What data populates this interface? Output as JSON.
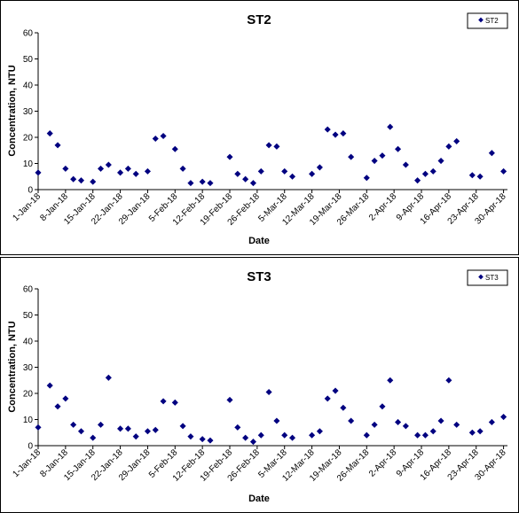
{
  "chart_data": [
    {
      "type": "scatter",
      "title": "ST2",
      "xlabel": "Date",
      "ylabel": "Concentration, NTU",
      "ylim": [
        0,
        60
      ],
      "yticks": [
        0,
        10,
        20,
        30,
        40,
        50,
        60
      ],
      "xlim": [
        "2018-01-01",
        "2018-05-01"
      ],
      "xtick_labels": [
        "1-Jan-18",
        "8-Jan-18",
        "15-Jan-18",
        "22-Jan-18",
        "29-Jan-18",
        "5-Feb-18",
        "12-Feb-18",
        "19-Feb-18",
        "26-Feb-18",
        "5-Mar-18",
        "12-Mar-18",
        "19-Mar-18",
        "26-Mar-18",
        "2-Apr-18",
        "9-Apr-18",
        "16-Apr-18",
        "23-Apr-18",
        "30-Apr-18"
      ],
      "legend": "top-right",
      "grid": false,
      "marker_color": "#000080",
      "series": [
        {
          "name": "ST2",
          "x": [
            "2018-01-01",
            "2018-01-04",
            "2018-01-06",
            "2018-01-08",
            "2018-01-10",
            "2018-01-12",
            "2018-01-15",
            "2018-01-17",
            "2018-01-19",
            "2018-01-22",
            "2018-01-24",
            "2018-01-26",
            "2018-01-29",
            "2018-01-31",
            "2018-02-02",
            "2018-02-05",
            "2018-02-07",
            "2018-02-09",
            "2018-02-12",
            "2018-02-14",
            "2018-02-19",
            "2018-02-21",
            "2018-02-23",
            "2018-02-25",
            "2018-02-27",
            "2018-03-01",
            "2018-03-03",
            "2018-03-05",
            "2018-03-07",
            "2018-03-12",
            "2018-03-14",
            "2018-03-16",
            "2018-03-18",
            "2018-03-20",
            "2018-03-22",
            "2018-03-26",
            "2018-03-28",
            "2018-03-30",
            "2018-04-01",
            "2018-04-03",
            "2018-04-05",
            "2018-04-08",
            "2018-04-10",
            "2018-04-12",
            "2018-04-14",
            "2018-04-16",
            "2018-04-18",
            "2018-04-22",
            "2018-04-24",
            "2018-04-27",
            "2018-04-30"
          ],
          "y": [
            6.5,
            21.5,
            17,
            8,
            4,
            3.5,
            3,
            8,
            9.5,
            6.5,
            8,
            6,
            7,
            19.5,
            20.5,
            15.5,
            8,
            2.5,
            3,
            2.5,
            12.5,
            6,
            4,
            2.5,
            7,
            17,
            16.5,
            7,
            5,
            6,
            8.5,
            23,
            21,
            21.5,
            12.5,
            4.5,
            11,
            13,
            24,
            15.5,
            9.5,
            3.5,
            6,
            7,
            11,
            16.5,
            18.5,
            5.5,
            5,
            14,
            7
          ]
        }
      ]
    },
    {
      "type": "scatter",
      "title": "ST3",
      "xlabel": "Date",
      "ylabel": "Concentration, NTU",
      "ylim": [
        0,
        60
      ],
      "yticks": [
        0,
        10,
        20,
        30,
        40,
        50,
        60
      ],
      "xlim": [
        "2018-01-01",
        "2018-05-01"
      ],
      "xtick_labels": [
        "1-Jan-18",
        "8-Jan-18",
        "15-Jan-18",
        "22-Jan-18",
        "29-Jan-18",
        "5-Feb-18",
        "12-Feb-18",
        "19-Feb-18",
        "26-Feb-18",
        "5-Mar-18",
        "12-Mar-18",
        "19-Mar-18",
        "26-Mar-18",
        "2-Apr-18",
        "9-Apr-18",
        "16-Apr-18",
        "23-Apr-18",
        "30-Apr-18"
      ],
      "legend": "top-right",
      "grid": false,
      "marker_color": "#000080",
      "series": [
        {
          "name": "ST3",
          "x": [
            "2018-01-01",
            "2018-01-04",
            "2018-01-06",
            "2018-01-08",
            "2018-01-10",
            "2018-01-12",
            "2018-01-15",
            "2018-01-17",
            "2018-01-19",
            "2018-01-22",
            "2018-01-24",
            "2018-01-26",
            "2018-01-29",
            "2018-01-31",
            "2018-02-02",
            "2018-02-05",
            "2018-02-07",
            "2018-02-09",
            "2018-02-12",
            "2018-02-14",
            "2018-02-19",
            "2018-02-21",
            "2018-02-23",
            "2018-02-25",
            "2018-02-27",
            "2018-03-01",
            "2018-03-03",
            "2018-03-05",
            "2018-03-07",
            "2018-03-12",
            "2018-03-14",
            "2018-03-16",
            "2018-03-18",
            "2018-03-20",
            "2018-03-22",
            "2018-03-26",
            "2018-03-28",
            "2018-03-30",
            "2018-04-01",
            "2018-04-03",
            "2018-04-05",
            "2018-04-08",
            "2018-04-10",
            "2018-04-12",
            "2018-04-14",
            "2018-04-16",
            "2018-04-18",
            "2018-04-22",
            "2018-04-24",
            "2018-04-27",
            "2018-04-30"
          ],
          "y": [
            7,
            23,
            15,
            18,
            8,
            5.5,
            3,
            8,
            26,
            6.5,
            6.5,
            3.5,
            5.5,
            6,
            17,
            16.5,
            7.5,
            3.5,
            2.5,
            2,
            17.5,
            7,
            3,
            1.5,
            4,
            20.5,
            9.5,
            4,
            3,
            4,
            5.5,
            18,
            21,
            14.5,
            9.5,
            4,
            8,
            15,
            25,
            9,
            7.5,
            4,
            4,
            5.5,
            9.5,
            25,
            8,
            5,
            5.5,
            9,
            11
          ]
        }
      ]
    }
  ]
}
